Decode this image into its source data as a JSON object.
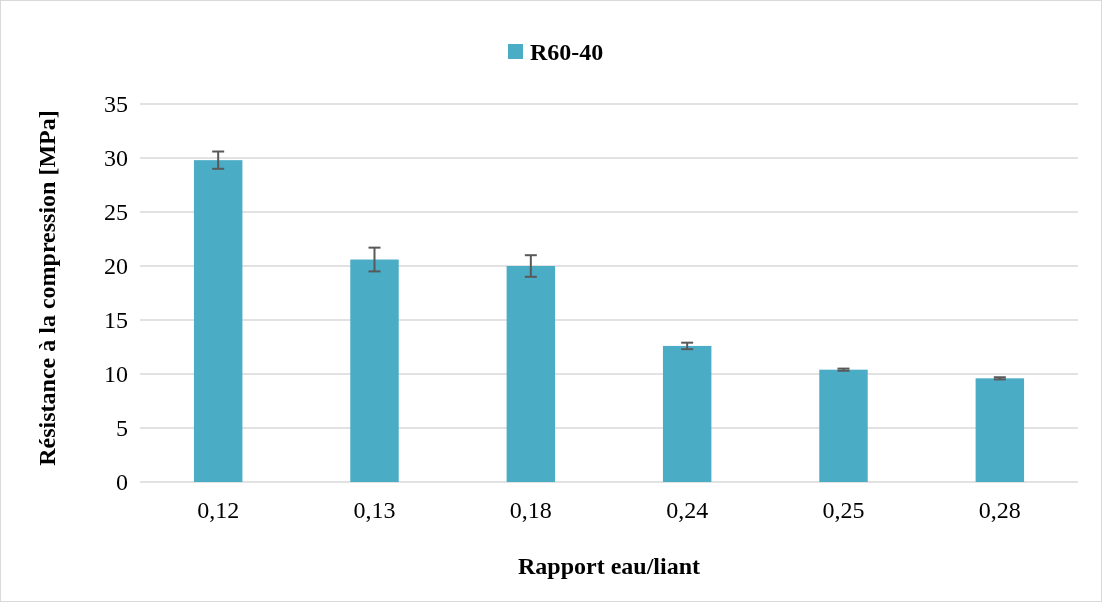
{
  "chart_data": {
    "type": "bar",
    "xlabel": "Rapport eau/liant",
    "ylabel": "Résistance à la compression [MPa]",
    "categories": [
      "0,12",
      "0,13",
      "0,18",
      "0,24",
      "0,25",
      "0,28"
    ],
    "series": [
      {
        "name": "R60-40",
        "color": "#4bacc6",
        "values": [
          29.8,
          20.6,
          20.0,
          12.6,
          10.4,
          9.6
        ],
        "errors": [
          0.8,
          1.1,
          1.0,
          0.3,
          0.1,
          0.1
        ]
      }
    ],
    "ylim": [
      0,
      35
    ],
    "yticks": [
      0,
      5,
      10,
      15,
      20,
      25,
      30,
      35
    ],
    "grid": "y",
    "legend": "top"
  }
}
